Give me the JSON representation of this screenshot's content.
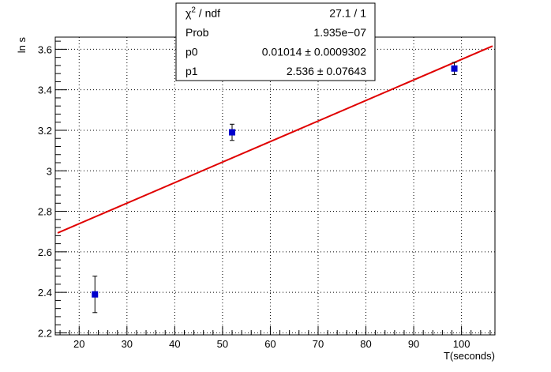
{
  "chart_data": {
    "type": "scatter",
    "xlabel": "T(seconds)",
    "ylabel": "ln s",
    "xlim": [
      15,
      107
    ],
    "ylim": [
      2.19,
      3.66
    ],
    "xticks": [
      20,
      30,
      40,
      50,
      60,
      70,
      80,
      90,
      100
    ],
    "xtick_labels": [
      "20",
      "30",
      "40",
      "50",
      "60",
      "70",
      "80",
      "90",
      "100"
    ],
    "yticks": [
      2.2,
      2.4,
      2.6,
      2.8,
      3.0,
      3.2,
      3.4,
      3.6
    ],
    "ytick_labels": [
      "2.2",
      "2.4",
      "2.6",
      "2.8",
      "3",
      "3.2",
      "3.4",
      "3.6"
    ],
    "grid": true,
    "series": [
      {
        "kind": "points",
        "color": "#0000cc",
        "points": [
          {
            "x": 23.3,
            "y": 2.39,
            "yerr": 0.09
          },
          {
            "x": 52.0,
            "y": 3.19,
            "yerr": 0.04
          },
          {
            "x": 98.5,
            "y": 3.505,
            "yerr": 0.03
          }
        ]
      },
      {
        "kind": "fit",
        "color": "#e00000",
        "p0": 0.01014,
        "p1": 2.536,
        "x_range": [
          15.5,
          106.5
        ]
      }
    ],
    "stats_box": {
      "rows": [
        {
          "label_base": "χ",
          "label_sup": "2",
          "label_rest": " / ndf",
          "value": "27.1 / 1"
        },
        {
          "label_base": "Prob",
          "label_sup": "",
          "label_rest": "",
          "value": "1.935e−07"
        },
        {
          "label_base": "p0",
          "label_sup": "",
          "label_rest": "",
          "value": "0.01014 ± 0.0009302"
        },
        {
          "label_base": "p1",
          "label_sup": "",
          "label_rest": "",
          "value": "2.536 ± 0.07643"
        }
      ]
    }
  }
}
